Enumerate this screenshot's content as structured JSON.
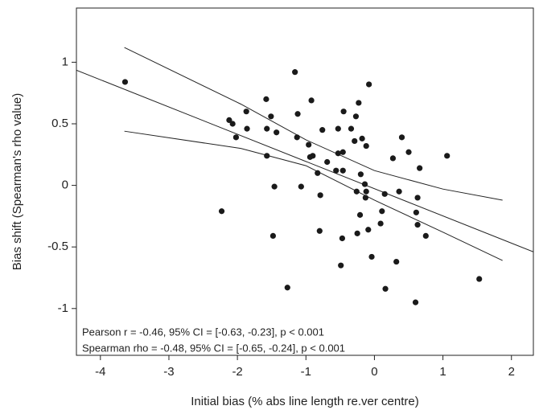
{
  "chart_data": {
    "type": "scatter",
    "xlabel": "Initial bias (% abs line length re.ver centre)",
    "ylabel": "Bias shift (Spearman's rho value)",
    "annotations": [
      "Pearson r = -0.46, 95% CI = [-0.63, -0.23], p < 0.001",
      "Spearman rho = -0.48, 95% CI = [-0.65, -0.24], p < 0.001"
    ],
    "color": "#1a1a1a",
    "xlim": [
      -4.35,
      2.32
    ],
    "ylim": [
      -1.38,
      1.44
    ],
    "xticks": [
      -4,
      -3,
      -2,
      -1,
      0,
      1,
      2
    ],
    "yticks": [
      -1,
      -0.5,
      0,
      0.5,
      1
    ],
    "x": [
      -3.64,
      -2.23,
      -2.12,
      -2.07,
      -2.02,
      -1.87,
      -1.86,
      -1.58,
      -1.57,
      -1.57,
      -1.51,
      -1.48,
      -1.46,
      -1.43,
      -1.27,
      -1.16,
      -1.13,
      -1.12,
      -1.07,
      -0.96,
      -0.94,
      -0.92,
      -0.9,
      -0.83,
      -0.8,
      -0.79,
      -0.76,
      -0.69,
      -0.56,
      -0.53,
      -0.53,
      -0.49,
      -0.47,
      -0.46,
      -0.46,
      -0.45,
      -0.34,
      -0.29,
      -0.27,
      -0.26,
      -0.25,
      -0.23,
      -0.21,
      -0.2,
      -0.18,
      -0.14,
      -0.13,
      -0.12,
      -0.12,
      -0.09,
      -0.08,
      -0.04,
      0.09,
      0.11,
      0.15,
      0.16,
      0.27,
      0.32,
      0.36,
      0.4,
      0.5,
      0.6,
      0.61,
      0.63,
      0.63,
      0.66,
      0.75,
      1.06,
      1.53
    ],
    "values": [
      0.84,
      -0.21,
      0.53,
      0.5,
      0.39,
      0.6,
      0.46,
      0.7,
      0.46,
      0.24,
      0.56,
      -0.41,
      -0.01,
      0.43,
      -0.83,
      0.92,
      0.39,
      0.58,
      -0.01,
      0.33,
      0.23,
      0.69,
      0.24,
      0.1,
      -0.37,
      -0.08,
      0.45,
      0.19,
      0.12,
      0.46,
      0.26,
      -0.65,
      -0.43,
      0.27,
      0.12,
      0.6,
      0.46,
      0.36,
      0.56,
      -0.05,
      -0.39,
      0.67,
      -0.24,
      0.09,
      0.38,
      0.01,
      -0.1,
      0.32,
      -0.05,
      -0.36,
      0.82,
      -0.58,
      -0.31,
      -0.21,
      -0.07,
      -0.84,
      0.22,
      -0.62,
      -0.05,
      0.39,
      0.27,
      -0.95,
      -0.22,
      -0.1,
      -0.32,
      0.14,
      -0.41,
      0.24,
      -0.76
    ],
    "fit": {
      "x": [
        -4.35,
        2.32
      ],
      "values": [
        0.935,
        -0.54
      ]
    },
    "ci_upper": {
      "x": [
        -3.65,
        -1.95,
        -1.0,
        0,
        1.0,
        1.87
      ],
      "values": [
        1.12,
        0.66,
        0.37,
        0.12,
        -0.03,
        -0.12
      ]
    },
    "ci_lower": {
      "x": [
        -3.65,
        -1.95,
        -1.0,
        0,
        1.0,
        1.87
      ],
      "values": [
        0.44,
        0.3,
        0.16,
        -0.12,
        -0.38,
        -0.61
      ]
    }
  }
}
